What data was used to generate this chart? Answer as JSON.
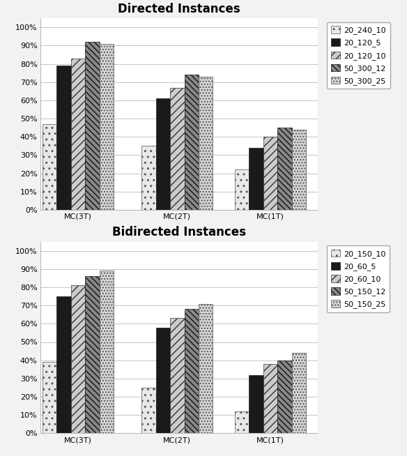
{
  "directed": {
    "title": "Directed Instances",
    "categories": [
      "MC(3T)",
      "MC(2T)",
      "MC(1T)"
    ],
    "series": [
      {
        "label": "20_240_10",
        "values": [
          0.47,
          0.35,
          0.22
        ],
        "hatch": "..",
        "facecolor": "#e8e8e8",
        "edgecolor": "#555555"
      },
      {
        "label": "20_120_5",
        "values": [
          0.79,
          0.61,
          0.34
        ],
        "hatch": "",
        "facecolor": "#1a1a1a",
        "edgecolor": "#1a1a1a"
      },
      {
        "label": "20_120_10",
        "values": [
          0.83,
          0.67,
          0.4
        ],
        "hatch": "///",
        "facecolor": "#cccccc",
        "edgecolor": "#333333"
      },
      {
        "label": "50_300_12",
        "values": [
          0.92,
          0.74,
          0.45
        ],
        "hatch": "\\\\\\\\",
        "facecolor": "#888888",
        "edgecolor": "#111111"
      },
      {
        "label": "50_300_25",
        "values": [
          0.91,
          0.73,
          0.44
        ],
        "hatch": "....",
        "facecolor": "#d5d5d5",
        "edgecolor": "#555555"
      }
    ]
  },
  "bidirected": {
    "title": "Bidirected Instances",
    "categories": [
      "MC(3T)",
      "MC(2T)",
      "MC(1T)"
    ],
    "series": [
      {
        "label": "20_150_10",
        "values": [
          0.39,
          0.25,
          0.12
        ],
        "hatch": "..",
        "facecolor": "#e8e8e8",
        "edgecolor": "#555555"
      },
      {
        "label": "20_60_5",
        "values": [
          0.75,
          0.58,
          0.32
        ],
        "hatch": "",
        "facecolor": "#1a1a1a",
        "edgecolor": "#1a1a1a"
      },
      {
        "label": "20_60_10",
        "values": [
          0.81,
          0.63,
          0.38
        ],
        "hatch": "///",
        "facecolor": "#cccccc",
        "edgecolor": "#333333"
      },
      {
        "label": "50_150_12",
        "values": [
          0.86,
          0.68,
          0.4
        ],
        "hatch": "\\\\\\\\",
        "facecolor": "#888888",
        "edgecolor": "#111111"
      },
      {
        "label": "50_150_25",
        "values": [
          0.89,
          0.71,
          0.44
        ],
        "hatch": "....",
        "facecolor": "#d5d5d5",
        "edgecolor": "#555555"
      }
    ]
  },
  "bar_width": 0.115,
  "group_positions": [
    0.3,
    1.1,
    1.85
  ],
  "ylim": [
    0,
    1.05
  ],
  "yticks": [
    0.0,
    0.1,
    0.2,
    0.3,
    0.4,
    0.5,
    0.6,
    0.7,
    0.8,
    0.9,
    1.0
  ],
  "ytick_labels": [
    "0%",
    "10%",
    "20%",
    "30%",
    "40%",
    "50%",
    "60%",
    "70%",
    "80%",
    "90%",
    "100%"
  ],
  "bg_color": "#f2f2f2",
  "plot_bg": "#ffffff",
  "title_fontsize": 12,
  "tick_fontsize": 8,
  "legend_fontsize": 8,
  "fig_width": 5.84,
  "fig_height": 6.54
}
